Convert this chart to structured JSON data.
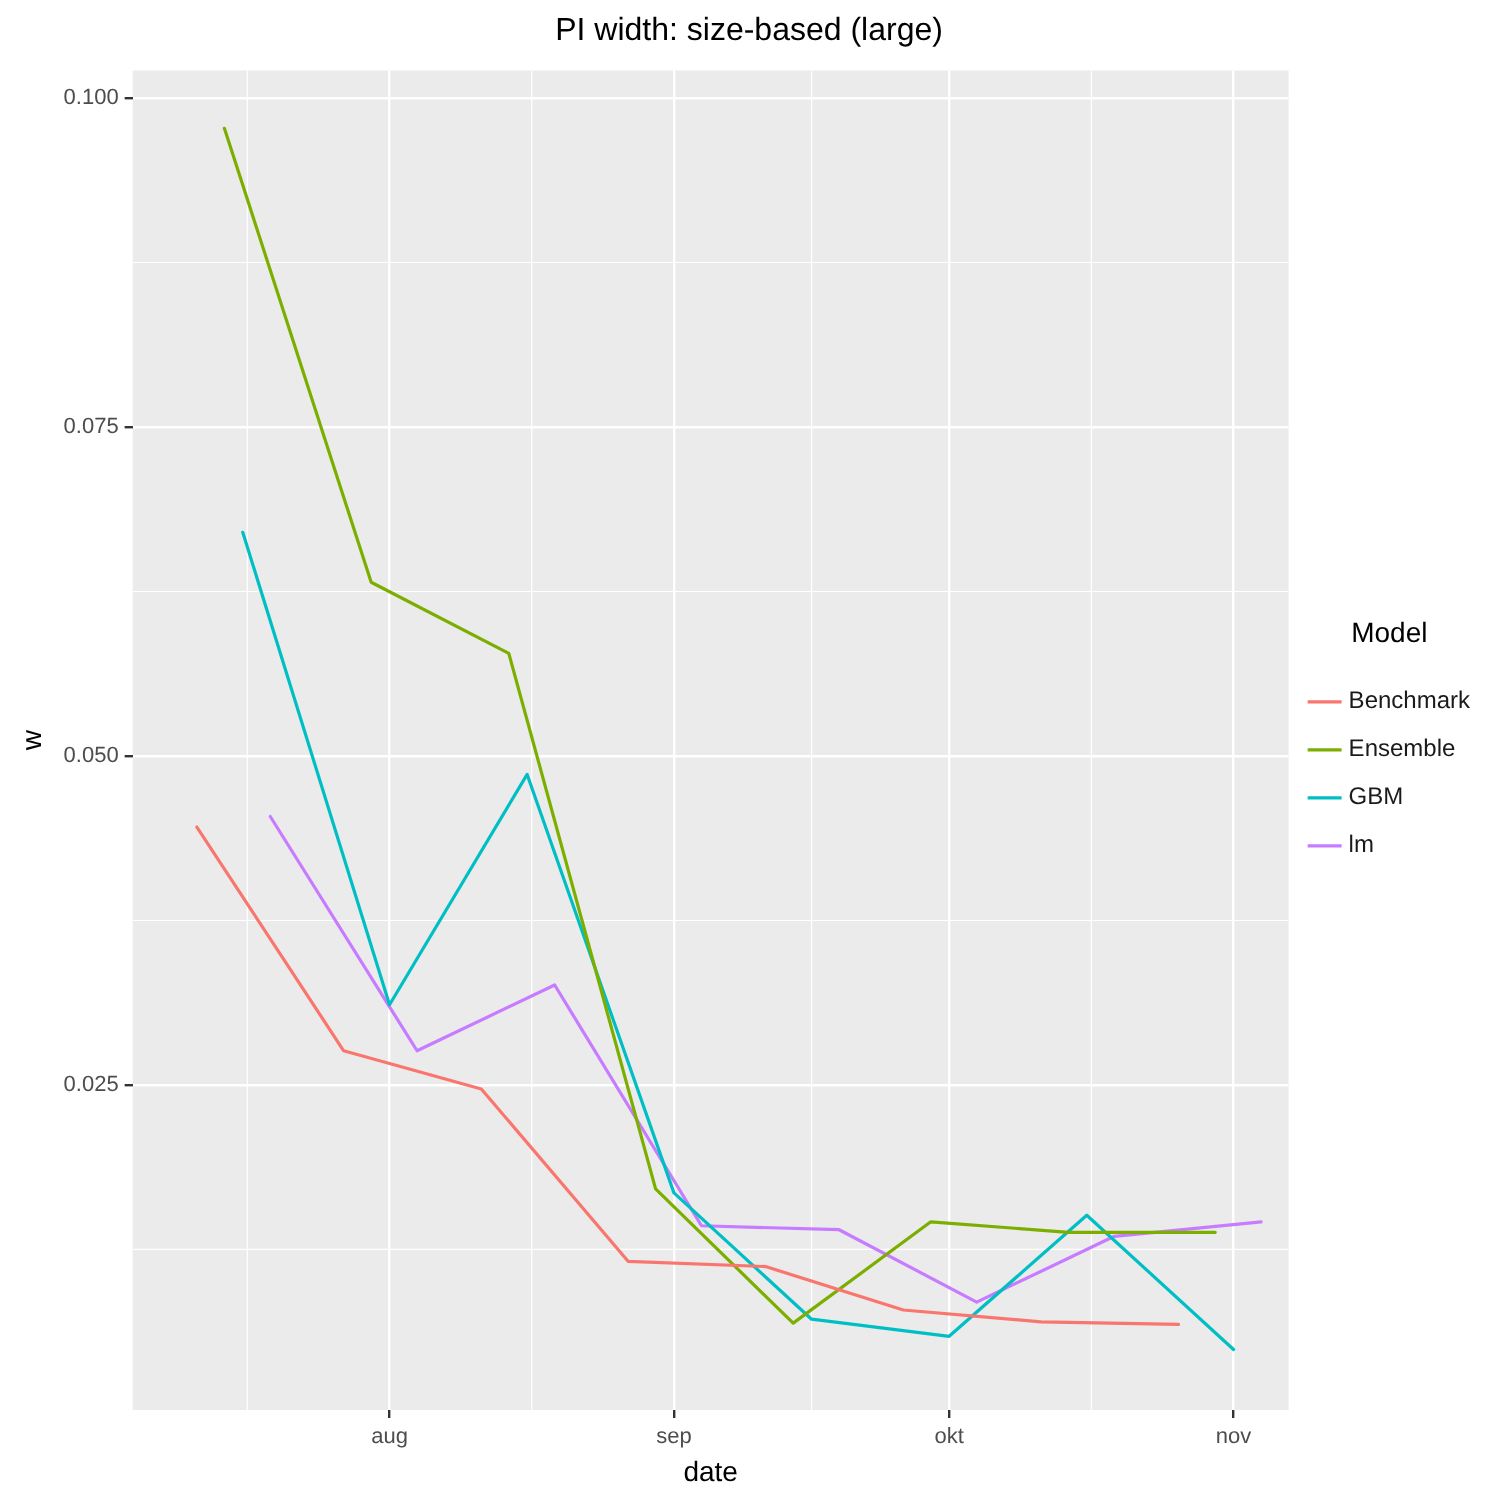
{
  "chart_data": {
    "type": "line",
    "title": "PI width: size-based (large)",
    "xlabel": "date",
    "ylabel": "w",
    "legend_title": "Model",
    "legend": "right",
    "grid": true,
    "marker": "none",
    "line_style": "solid",
    "xlim": [
      "--07-04",
      "--11-07"
    ],
    "xticks": [
      {
        "value": "--08-01",
        "label": "aug"
      },
      {
        "value": "--09-01",
        "label": "sep"
      },
      {
        "value": "--10-01",
        "label": "okt"
      },
      {
        "value": "--11-01",
        "label": "nov"
      }
    ],
    "ylim": [
      0.0003,
      0.1021
    ],
    "yticks": [
      {
        "value": 0.025,
        "label": "0.025"
      },
      {
        "value": 0.05,
        "label": "0.050"
      },
      {
        "value": 0.075,
        "label": "0.075"
      },
      {
        "value": 0.1,
        "label": "0.100"
      }
    ],
    "series": [
      {
        "name": "Benchmark",
        "color": "#f8766d",
        "x": [
          "--07-11",
          "--07-27",
          "--08-11",
          "--08-27",
          "--09-11",
          "--09-26",
          "--10-11",
          "--10-26"
        ],
        "values": [
          0.0446,
          0.0276,
          0.0247,
          0.0116,
          0.0112,
          0.0079,
          0.007,
          0.0068
        ]
      },
      {
        "name": "Ensemble",
        "color": "#7cae00",
        "x": [
          "--07-14",
          "--07-30",
          "--08-14",
          "--08-30",
          "--09-14",
          "--09-29",
          "--10-14",
          "--10-30"
        ],
        "values": [
          0.0977,
          0.0632,
          0.0578,
          0.0171,
          0.0069,
          0.0146,
          0.0138,
          0.0138
        ]
      },
      {
        "name": "GBM",
        "color": "#00bfc4",
        "x": [
          "--07-16",
          "--08-01",
          "--08-16",
          "--09-01",
          "--09-16",
          "--10-01",
          "--10-16",
          "--11-01"
        ],
        "values": [
          0.067,
          0.0311,
          0.0486,
          0.0168,
          0.0072,
          0.0059,
          0.0151,
          0.0049
        ]
      },
      {
        "name": "lm",
        "color": "#c77cff",
        "x": [
          "--07-19",
          "--08-04",
          "--08-19",
          "--09-04",
          "--09-19",
          "--10-04",
          "--10-19",
          "--11-04"
        ],
        "values": [
          0.0454,
          0.0276,
          0.0326,
          0.0143,
          0.014,
          0.0085,
          0.0135,
          0.0146
        ]
      }
    ]
  }
}
